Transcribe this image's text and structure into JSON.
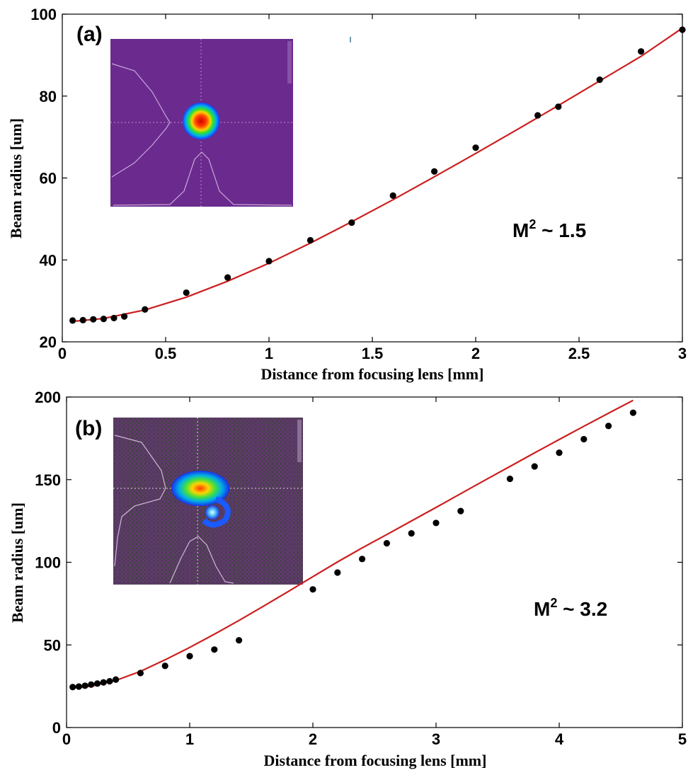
{
  "chart_data": [
    {
      "type": "scatter",
      "panel_label": "(a)",
      "xlabel": "Distance from focusing lens [mm]",
      "ylabel": "Beam radius [um]",
      "xlim": [
        0,
        3
      ],
      "ylim": [
        20,
        100
      ],
      "x_ticks": [
        0,
        0.5,
        1,
        1.5,
        2,
        2.5,
        3
      ],
      "x_tick_labels": [
        "0",
        "0.5",
        "1",
        "1.5",
        "2",
        "2.5",
        "3"
      ],
      "y_ticks": [
        20,
        40,
        60,
        80,
        100
      ],
      "y_tick_labels": [
        "20",
        "40",
        "60",
        "80",
        "100"
      ],
      "annotation": {
        "prefix": "M",
        "superscript": "2",
        "suffix": " ~ 1.5"
      },
      "series": [
        {
          "kind": "points",
          "color": "#000000",
          "x": [
            0.05,
            0.1,
            0.15,
            0.2,
            0.25,
            0.3,
            0.4,
            0.6,
            0.8,
            1.0,
            1.2,
            1.4,
            1.6,
            1.8,
            2.0,
            2.3,
            2.4,
            2.6,
            2.8,
            3.0
          ],
          "y": [
            25.2,
            25.3,
            25.5,
            25.6,
            25.8,
            26.2,
            27.9,
            32.0,
            35.7,
            39.7,
            44.8,
            49.1,
            55.7,
            61.6,
            67.4,
            75.3,
            77.4,
            84.0,
            90.9,
            96.2
          ]
        },
        {
          "kind": "fit",
          "color": "#cc1f1f",
          "x": [
            0.05,
            0.2,
            0.4,
            0.6,
            0.8,
            1.0,
            1.2,
            1.4,
            1.6,
            1.8,
            2.0,
            2.2,
            2.4,
            2.6,
            2.8,
            3.0
          ],
          "y": [
            25.0,
            25.7,
            27.8,
            30.9,
            34.8,
            39.2,
            44.1,
            49.3,
            54.7,
            60.3,
            66.0,
            71.8,
            77.7,
            83.7,
            89.7,
            96.6
          ]
        }
      ],
      "inset": {
        "image": "beam-profile-round"
      }
    },
    {
      "type": "scatter",
      "panel_label": "(b)",
      "xlabel": "Distance from focusing lens [mm]",
      "ylabel": "Beam radius [um]",
      "xlim": [
        0,
        5
      ],
      "ylim": [
        0,
        200
      ],
      "x_ticks": [
        0,
        1,
        2,
        3,
        4,
        5
      ],
      "x_tick_labels": [
        "0",
        "1",
        "2",
        "3",
        "4",
        "5"
      ],
      "y_ticks": [
        0,
        50,
        100,
        150,
        200
      ],
      "y_tick_labels": [
        "0",
        "50",
        "100",
        "150",
        "200"
      ],
      "annotation": {
        "prefix": "M",
        "superscript": "2",
        "suffix": " ~ 3.2"
      },
      "series": [
        {
          "kind": "points",
          "color": "#000000",
          "x": [
            0.05,
            0.1,
            0.15,
            0.2,
            0.25,
            0.3,
            0.35,
            0.4,
            0.6,
            0.8,
            1.0,
            1.2,
            1.4,
            2.0,
            2.2,
            2.4,
            2.6,
            2.8,
            3.0,
            3.2,
            3.6,
            3.8,
            4.0,
            4.2,
            4.4,
            4.6
          ],
          "y": [
            24.5,
            24.8,
            25.3,
            26.0,
            26.6,
            27.3,
            28.0,
            29.0,
            33.0,
            37.3,
            43.2,
            47.2,
            52.8,
            83.6,
            93.8,
            102.0,
            111.5,
            117.5,
            123.8,
            131.0,
            150.5,
            158.0,
            166.3,
            174.5,
            182.5,
            190.5
          ]
        },
        {
          "kind": "fit",
          "color": "#cc1f1f",
          "x": [
            0.05,
            0.2,
            0.4,
            0.6,
            0.8,
            1.0,
            1.2,
            1.4,
            1.6,
            1.8,
            2.0,
            2.2,
            2.4,
            2.6,
            2.8,
            3.0,
            3.2,
            3.4,
            3.6,
            3.8,
            4.0,
            4.2,
            4.4,
            4.6
          ],
          "y": [
            24.0,
            25.0,
            28.5,
            34.0,
            41.0,
            48.5,
            56.5,
            64.8,
            73.5,
            82.3,
            91.3,
            100.2,
            108.7,
            116.8,
            125.0,
            133.2,
            141.5,
            149.8,
            158.0,
            166.2,
            174.3,
            182.3,
            190.2,
            198.0
          ]
        }
      ],
      "inset": {
        "image": "beam-profile-distorted"
      }
    }
  ]
}
